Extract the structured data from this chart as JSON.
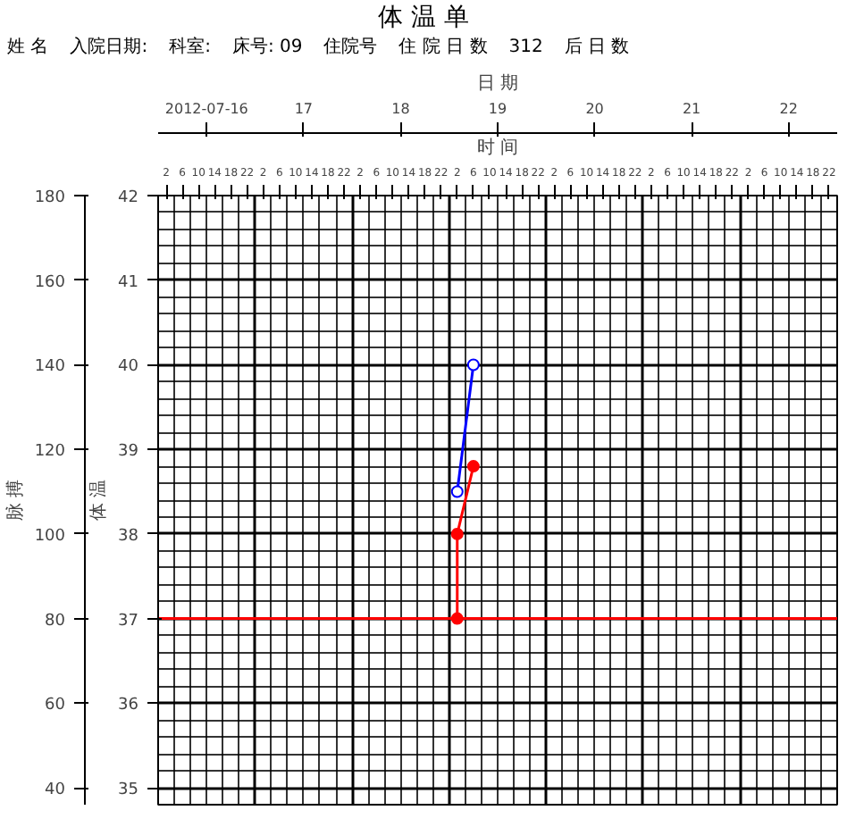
{
  "chart_data": {
    "type": "line",
    "title": "体 温 单",
    "annotations": [
      "姓 名",
      "入院日期:",
      "科室:",
      "床号: 09",
      "住院号",
      "住 院 日 数",
      "312",
      "后 日 数"
    ],
    "xlabel": "时 间",
    "x2label": "日 期",
    "ylabel": "脉 搏",
    "y2label": "体 温",
    "xlim": [
      "2012-07-16T00:00",
      "2012-07-23T00:00"
    ],
    "xticks": [
      {
        "value": "2012-07-16T02:00",
        "label": "2"
      },
      {
        "value": "2012-07-16T06:00",
        "label": "6"
      },
      {
        "value": "2012-07-16T10:00",
        "label": "10"
      },
      {
        "value": "2012-07-16T14:00",
        "label": "14"
      },
      {
        "value": "2012-07-16T18:00",
        "label": "18"
      },
      {
        "value": "2012-07-16T22:00",
        "label": "22"
      },
      {
        "value": "2012-07-17T02:00",
        "label": "2"
      },
      {
        "value": "2012-07-17T06:00",
        "label": "6"
      },
      {
        "value": "2012-07-17T10:00",
        "label": "10"
      },
      {
        "value": "2012-07-17T14:00",
        "label": "14"
      },
      {
        "value": "2012-07-17T18:00",
        "label": "18"
      },
      {
        "value": "2012-07-17T22:00",
        "label": "22"
      },
      {
        "value": "2012-07-18T02:00",
        "label": "2"
      },
      {
        "value": "2012-07-18T06:00",
        "label": "6"
      },
      {
        "value": "2012-07-18T10:00",
        "label": "10"
      },
      {
        "value": "2012-07-18T14:00",
        "label": "14"
      },
      {
        "value": "2012-07-18T18:00",
        "label": "18"
      },
      {
        "value": "2012-07-18T22:00",
        "label": "22"
      },
      {
        "value": "2012-07-19T02:00",
        "label": "2"
      },
      {
        "value": "2012-07-19T06:00",
        "label": "6"
      },
      {
        "value": "2012-07-19T10:00",
        "label": "10"
      },
      {
        "value": "2012-07-19T14:00",
        "label": "14"
      },
      {
        "value": "2012-07-19T18:00",
        "label": "18"
      },
      {
        "value": "2012-07-19T22:00",
        "label": "22"
      },
      {
        "value": "2012-07-20T02:00",
        "label": "2"
      },
      {
        "value": "2012-07-20T06:00",
        "label": "6"
      },
      {
        "value": "2012-07-20T10:00",
        "label": "10"
      },
      {
        "value": "2012-07-20T14:00",
        "label": "14"
      },
      {
        "value": "2012-07-20T18:00",
        "label": "18"
      },
      {
        "value": "2012-07-20T22:00",
        "label": "22"
      },
      {
        "value": "2012-07-21T02:00",
        "label": "2"
      },
      {
        "value": "2012-07-21T06:00",
        "label": "6"
      },
      {
        "value": "2012-07-21T10:00",
        "label": "10"
      },
      {
        "value": "2012-07-21T14:00",
        "label": "14"
      },
      {
        "value": "2012-07-21T18:00",
        "label": "18"
      },
      {
        "value": "2012-07-21T22:00",
        "label": "22"
      },
      {
        "value": "2012-07-22T02:00",
        "label": "2"
      },
      {
        "value": "2012-07-22T06:00",
        "label": "6"
      },
      {
        "value": "2012-07-22T10:00",
        "label": "10"
      },
      {
        "value": "2012-07-22T14:00",
        "label": "14"
      },
      {
        "value": "2012-07-22T18:00",
        "label": "18"
      },
      {
        "value": "2012-07-22T22:00",
        "label": "22"
      }
    ],
    "x2lim": [
      "2012-07-16T00:00",
      "2012-07-23T00:00"
    ],
    "x2ticks": [
      {
        "value": "2012-07-16T12:00",
        "label": "2012-07-16"
      },
      {
        "value": "2012-07-17T12:00",
        "label": "17"
      },
      {
        "value": "2012-07-18T12:00",
        "label": "18"
      },
      {
        "value": "2012-07-19T12:00",
        "label": "19"
      },
      {
        "value": "2012-07-20T12:00",
        "label": "20"
      },
      {
        "value": "2012-07-21T12:00",
        "label": "21"
      },
      {
        "value": "2012-07-22T12:00",
        "label": "22"
      }
    ],
    "ylim": [
      36,
      180
    ],
    "yticks": [
      40,
      60,
      80,
      100,
      120,
      140,
      160,
      180
    ],
    "y2lim": [
      34.8,
      42
    ],
    "y2ticks": [
      35,
      36,
      37,
      38,
      39,
      40,
      41,
      42
    ],
    "series": [
      {
        "color": "#0000ff",
        "x": [
          "2012-07-19T02:00",
          "2012-07-19T06:00"
        ],
        "values": [
          110,
          140
        ]
      },
      {
        "color": "#ff0000",
        "axis": "y2",
        "x": [
          "2012-07-19T02:00",
          "2012-07-19T02:00",
          "2012-07-19T06:00"
        ],
        "values": [
          37.0,
          38.0,
          38.8
        ]
      }
    ],
    "marker": "circle",
    "grid": true,
    "ref_lines": [
      {
        "axis": "y2",
        "value": 37,
        "color": "#ff0000"
      }
    ]
  }
}
